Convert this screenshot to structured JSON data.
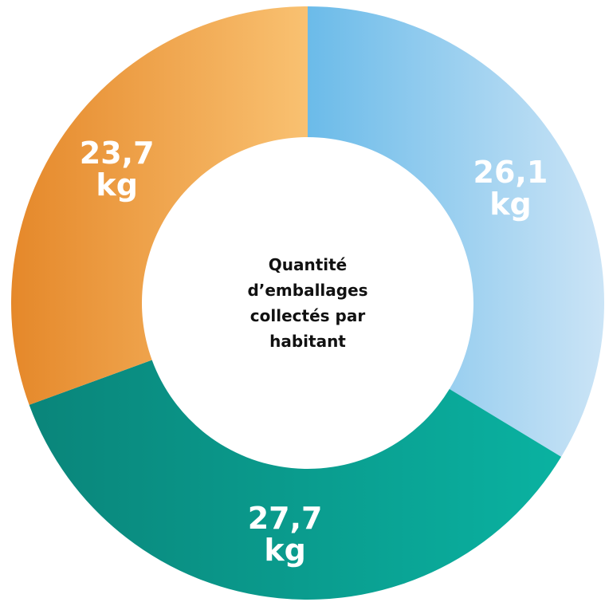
{
  "chart_data": {
    "type": "donut",
    "center_text": "Quantité d’emballages collectés par habitant",
    "values": [
      26.1,
      27.7,
      23.7
    ],
    "value_labels": [
      "26,1 kg",
      "27,7 kg",
      "23,7 kg"
    ],
    "colors": [
      [
        "#6bbbe9",
        "#cbe4f6"
      ],
      [
        "#0a857a",
        "#0ab2a1"
      ],
      [
        "#e5882a",
        "#f9c171"
      ]
    ]
  }
}
